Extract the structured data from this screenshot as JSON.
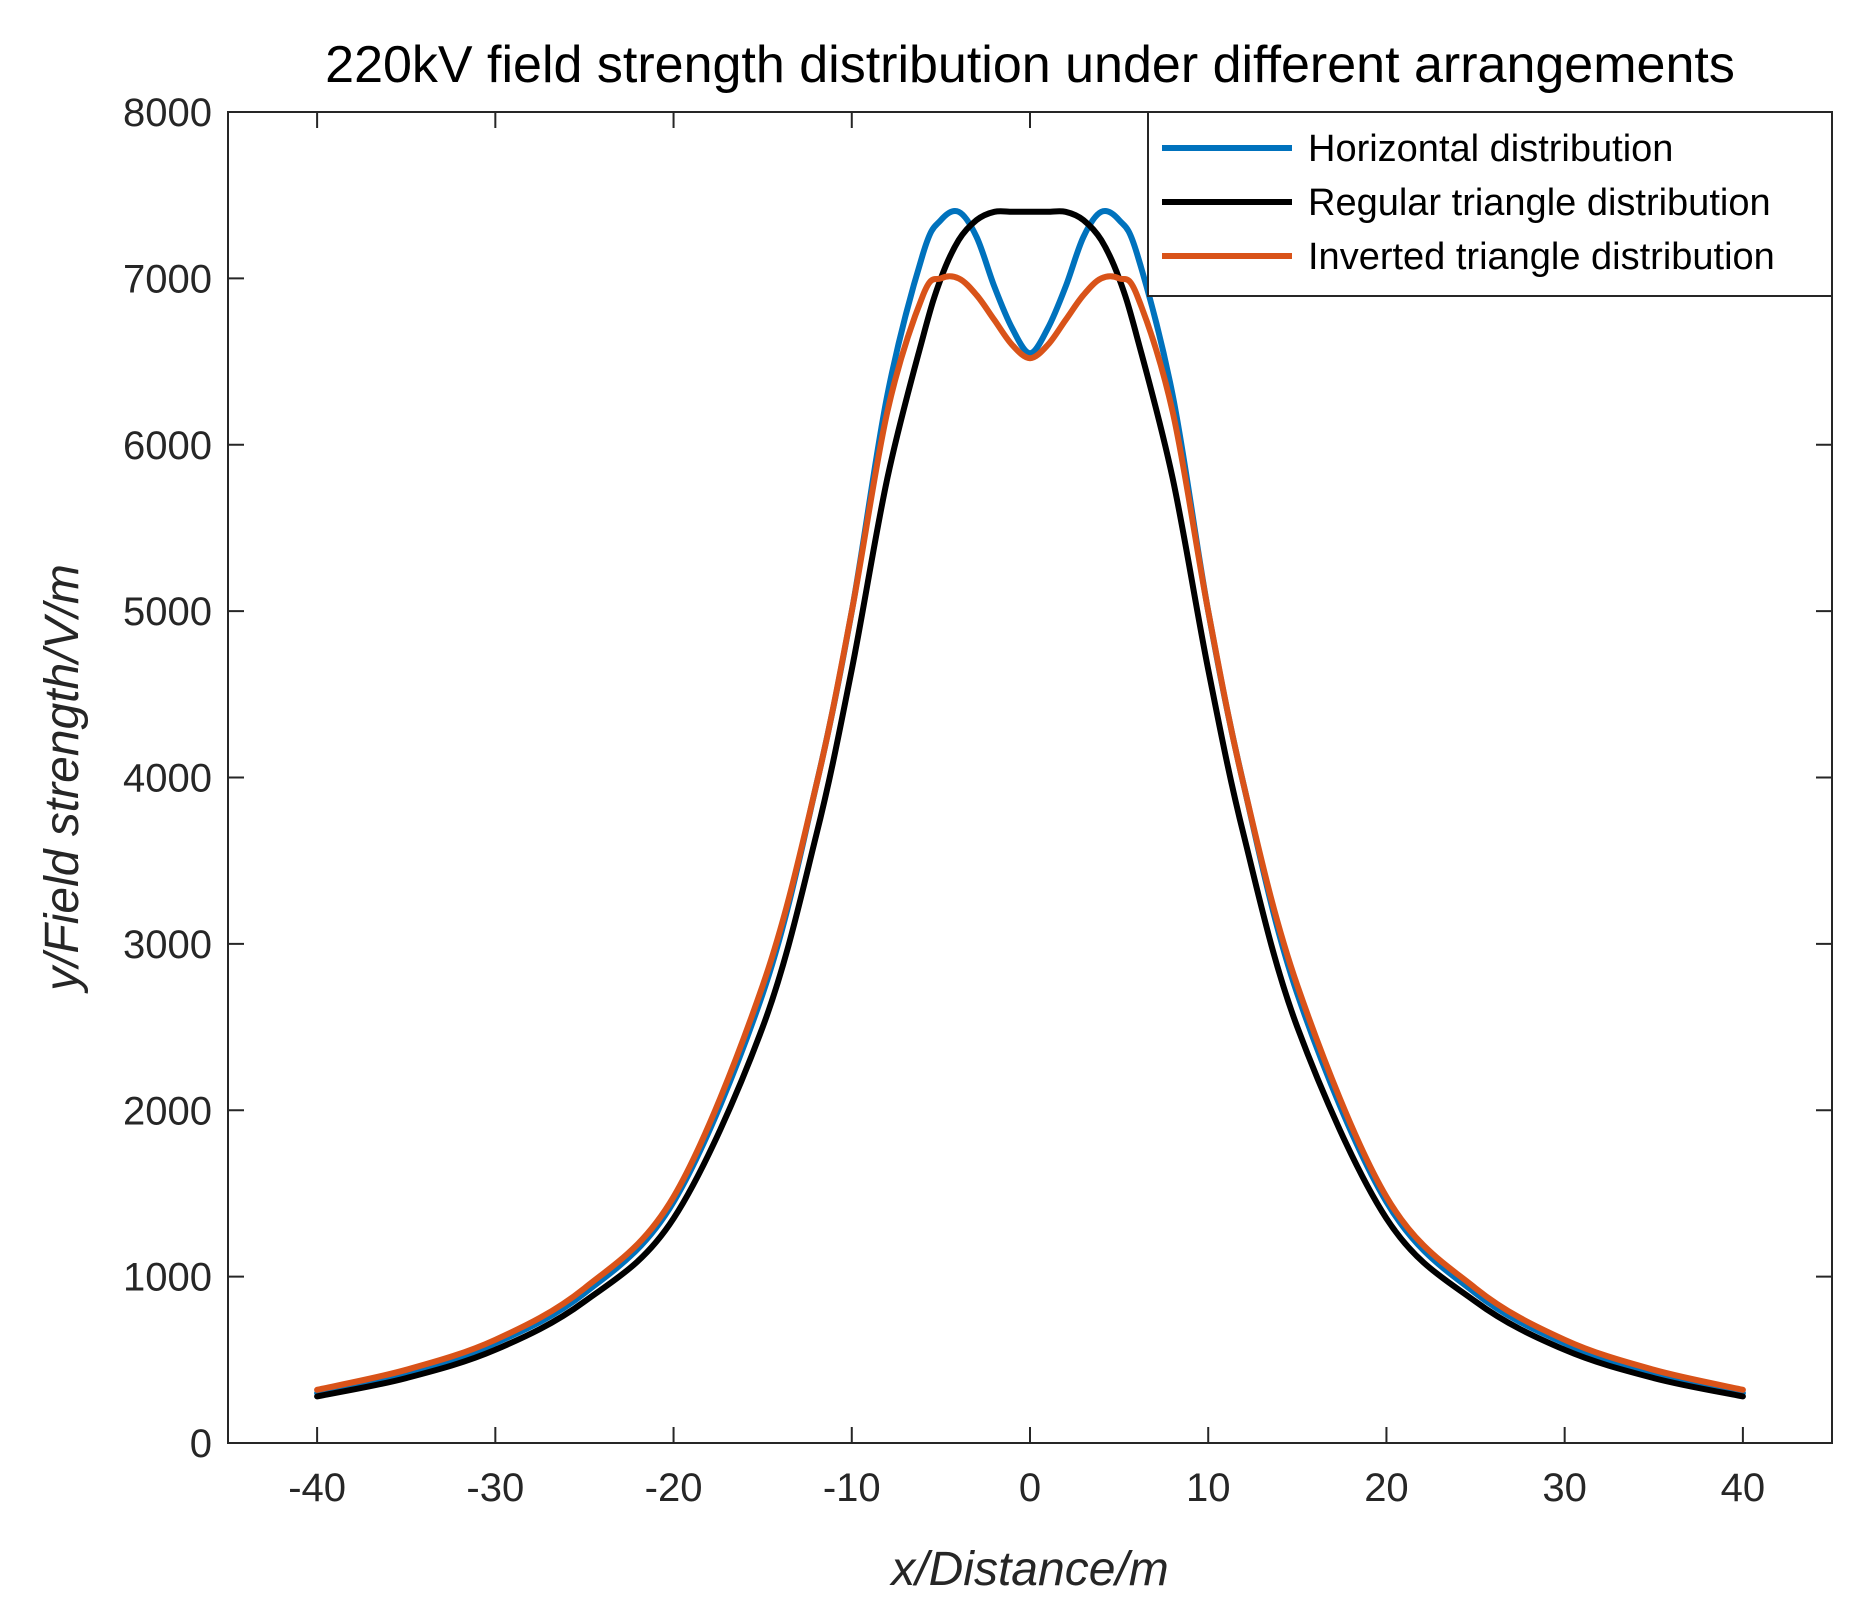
{
  "chart_data": {
    "type": "line",
    "title": "220kV field strength distribution under different arrangements",
    "xlabel": "x/Distance/m",
    "ylabel": "y/Field strength/V/m",
    "xlim": [
      -45,
      45
    ],
    "ylim": [
      0,
      8000
    ],
    "xticks": [
      -40,
      -30,
      -20,
      -10,
      0,
      10,
      20,
      30,
      40
    ],
    "yticks": [
      0,
      1000,
      2000,
      3000,
      4000,
      5000,
      6000,
      7000,
      8000
    ],
    "grid": false,
    "legend_position": "top-right",
    "x": [
      -40,
      -35,
      -30,
      -25,
      -20,
      -15,
      -12,
      -10,
      -8,
      -6,
      -5,
      -4,
      -3,
      -2,
      -1,
      0,
      1,
      2,
      3,
      4,
      5,
      6,
      8,
      10,
      12,
      15,
      20,
      25,
      30,
      35,
      40
    ],
    "series": [
      {
        "name": "Horizontal distribution",
        "color": "#0072BD",
        "values": [
          300,
          420,
          600,
          900,
          1450,
          2700,
          3950,
          5000,
          6300,
          7150,
          7350,
          7400,
          7250,
          6950,
          6700,
          6550,
          6700,
          6950,
          7250,
          7400,
          7350,
          7150,
          6300,
          5000,
          3950,
          2700,
          1450,
          900,
          600,
          420,
          300
        ]
      },
      {
        "name": "Regular triangle distribution",
        "color": "#000000",
        "values": [
          280,
          390,
          560,
          850,
          1350,
          2500,
          3650,
          4650,
          5800,
          6650,
          7000,
          7230,
          7350,
          7400,
          7400,
          7400,
          7400,
          7400,
          7350,
          7230,
          7000,
          6650,
          5800,
          4650,
          3650,
          2500,
          1350,
          850,
          560,
          390,
          280
        ]
      },
      {
        "name": "Inverted triangle distribution",
        "color": "#D95319",
        "values": [
          320,
          440,
          620,
          930,
          1480,
          2750,
          3950,
          5000,
          6200,
          6900,
          7000,
          7000,
          6900,
          6750,
          6600,
          6520,
          6600,
          6750,
          6900,
          7000,
          7000,
          6900,
          6200,
          5000,
          3950,
          2750,
          1480,
          930,
          620,
          440,
          320
        ]
      }
    ]
  }
}
